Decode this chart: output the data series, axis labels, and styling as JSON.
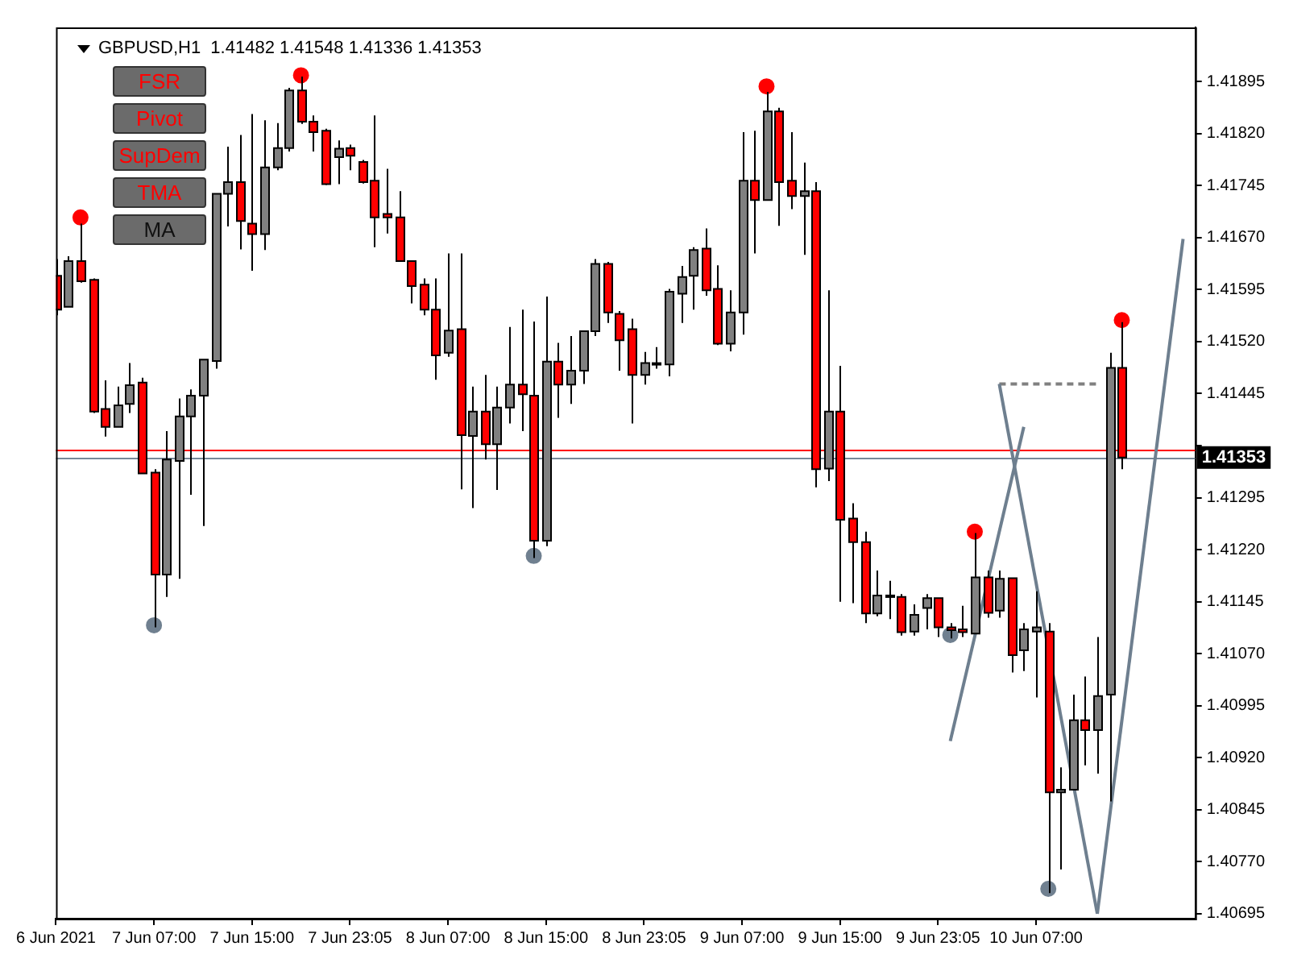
{
  "chart_data": {
    "type": "candlestick",
    "title": "GBPUSD,H1  1.41482 1.41548 1.41336 1.41353",
    "annotations": [
      "FSR",
      "Pivot",
      "SupDem",
      "TMA",
      "MA"
    ],
    "categories": [
      "6 Jun 2021",
      null,
      null,
      null,
      null,
      null,
      null,
      null,
      "7 Jun 07:00",
      null,
      null,
      null,
      null,
      null,
      null,
      null,
      "7 Jun 15:00",
      null,
      null,
      null,
      null,
      null,
      null,
      null,
      "7 Jun 23:05",
      null,
      null,
      null,
      null,
      null,
      null,
      null,
      "8 Jun 07:00",
      null,
      null,
      null,
      null,
      null,
      null,
      null,
      "8 Jun 15:00",
      null,
      null,
      null,
      null,
      null,
      null,
      null,
      "8 Jun 23:05",
      null,
      null,
      null,
      null,
      null,
      null,
      null,
      "9 Jun 07:00",
      null,
      null,
      null,
      null,
      null,
      null,
      null,
      "9 Jun 15:00",
      null,
      null,
      null,
      null,
      null,
      null,
      null,
      "9 Jun 23:05",
      null,
      null,
      null,
      null,
      null,
      null,
      null,
      "10 Jun 07:00",
      null,
      null,
      null,
      null,
      null,
      null,
      null,
      null,
      null,
      null,
      null,
      null,
      null
    ],
    "ohlc": [
      [
        1.41615,
        1.41639,
        1.41558,
        1.41566
      ],
      [
        1.4157,
        1.41643,
        1.4157,
        1.41636
      ],
      [
        1.41636,
        1.4169,
        1.41605,
        1.41607
      ],
      [
        1.41609,
        1.41611,
        1.41417,
        1.41419
      ],
      [
        1.41423,
        1.41464,
        1.41383,
        1.41397
      ],
      [
        1.41397,
        1.41455,
        1.41397,
        1.41428
      ],
      [
        1.4143,
        1.41489,
        1.41417,
        1.41457
      ],
      [
        1.41461,
        1.41468,
        1.4133,
        1.4133
      ],
      [
        1.41331,
        1.41336,
        1.41108,
        1.41184
      ],
      [
        1.41184,
        1.41391,
        1.41152,
        1.4135
      ],
      [
        1.41348,
        1.41438,
        1.41178,
        1.41412
      ],
      [
        1.41412,
        1.41451,
        1.41299,
        1.41442
      ],
      [
        1.41442,
        1.41494,
        1.41254,
        1.41494
      ],
      [
        1.41492,
        1.41733,
        1.41481,
        1.41733
      ],
      [
        1.41733,
        1.41801,
        1.41686,
        1.4175
      ],
      [
        1.4175,
        1.41818,
        1.41653,
        1.41694
      ],
      [
        1.4169,
        1.41848,
        1.41622,
        1.41675
      ],
      [
        1.41675,
        1.41839,
        1.41652,
        1.41771
      ],
      [
        1.41771,
        1.41835,
        1.41767,
        1.41799
      ],
      [
        1.41799,
        1.41886,
        1.41794,
        1.41882
      ],
      [
        1.41882,
        1.41902,
        1.41834,
        1.41837
      ],
      [
        1.41837,
        1.41846,
        1.41794,
        1.41822
      ],
      [
        1.41824,
        1.41827,
        1.41746,
        1.41747
      ],
      [
        1.41786,
        1.4181,
        1.41747,
        1.41798
      ],
      [
        1.41799,
        1.41804,
        1.41767,
        1.41788
      ],
      [
        1.41779,
        1.41782,
        1.41748,
        1.4175
      ],
      [
        1.41752,
        1.41846,
        1.41656,
        1.41699
      ],
      [
        1.41704,
        1.41769,
        1.41676,
        1.41699
      ],
      [
        1.41699,
        1.41737,
        1.41636,
        1.41636
      ],
      [
        1.41636,
        1.41636,
        1.41575,
        1.416
      ],
      [
        1.41602,
        1.41611,
        1.41558,
        1.41566
      ],
      [
        1.41566,
        1.41611,
        1.41465,
        1.415
      ],
      [
        1.41504,
        1.41647,
        1.41498,
        1.41536
      ],
      [
        1.41538,
        1.41647,
        1.41307,
        1.41385
      ],
      [
        1.41384,
        1.41455,
        1.4128,
        1.41419
      ],
      [
        1.41419,
        1.41472,
        1.4135,
        1.41372
      ],
      [
        1.41372,
        1.41455,
        1.41306,
        1.41425
      ],
      [
        1.41425,
        1.41541,
        1.41402,
        1.41458
      ],
      [
        1.41458,
        1.41566,
        1.41391,
        1.41444
      ],
      [
        1.41442,
        1.41549,
        1.41208,
        1.41233
      ],
      [
        1.41233,
        1.41585,
        1.41225,
        1.41491
      ],
      [
        1.41491,
        1.41518,
        1.4141,
        1.41458
      ],
      [
        1.41458,
        1.41528,
        1.4143,
        1.41478
      ],
      [
        1.41478,
        1.41536,
        1.41459,
        1.41535
      ],
      [
        1.41535,
        1.41639,
        1.41528,
        1.41632
      ],
      [
        1.41632,
        1.41635,
        1.41547,
        1.41562
      ],
      [
        1.4156,
        1.41564,
        1.41478,
        1.41522
      ],
      [
        1.41538,
        1.41553,
        1.41402,
        1.41472
      ],
      [
        1.41472,
        1.41505,
        1.41458,
        1.41489
      ],
      [
        1.41487,
        1.41512,
        1.41481,
        1.41489
      ],
      [
        1.41487,
        1.41596,
        1.4147,
        1.41592
      ],
      [
        1.41589,
        1.41629,
        1.41547,
        1.41613
      ],
      [
        1.41615,
        1.41656,
        1.41566,
        1.41652
      ],
      [
        1.41654,
        1.41683,
        1.41586,
        1.41594
      ],
      [
        1.41596,
        1.4163,
        1.41515,
        1.41517
      ],
      [
        1.41517,
        1.41594,
        1.41506,
        1.41562
      ],
      [
        1.41562,
        1.41822,
        1.4153,
        1.41752
      ],
      [
        1.41752,
        1.41824,
        1.41647,
        1.41724
      ],
      [
        1.41724,
        1.4188,
        1.41724,
        1.41852
      ],
      [
        1.41852,
        1.41857,
        1.41687,
        1.4175
      ],
      [
        1.41752,
        1.41822,
        1.41711,
        1.4173
      ],
      [
        1.4173,
        1.41778,
        1.41645,
        1.41737
      ],
      [
        1.41737,
        1.4175,
        1.4131,
        1.41336
      ],
      [
        1.41337,
        1.41594,
        1.41319,
        1.41419
      ],
      [
        1.41419,
        1.41485,
        1.41145,
        1.41263
      ],
      [
        1.41265,
        1.41287,
        1.41143,
        1.41231
      ],
      [
        1.41231,
        1.41246,
        1.41114,
        1.41128
      ],
      [
        1.41128,
        1.4119,
        1.41124,
        1.41154
      ],
      [
        1.41152,
        1.41175,
        1.4112,
        1.41154
      ],
      [
        1.41152,
        1.41156,
        1.41096,
        1.41101
      ],
      [
        1.41102,
        1.41141,
        1.41096,
        1.41126
      ],
      [
        1.41136,
        1.41156,
        1.41105,
        1.4115
      ],
      [
        1.4115,
        1.4115,
        1.41094,
        1.41108
      ],
      [
        1.41108,
        1.41114,
        1.41092,
        1.41104
      ],
      [
        1.41105,
        1.41139,
        1.41094,
        1.41101
      ],
      [
        1.41099,
        1.41244,
        1.41099,
        1.4118
      ],
      [
        1.4118,
        1.4119,
        1.41122,
        1.41129
      ],
      [
        1.41132,
        1.4119,
        1.41122,
        1.41178
      ],
      [
        1.41179,
        1.41179,
        1.41043,
        1.41068
      ],
      [
        1.41075,
        1.41114,
        1.41045,
        1.41105
      ],
      [
        1.41102,
        1.4116,
        1.41007,
        1.41108
      ],
      [
        1.41102,
        1.41114,
        1.40725,
        1.4087
      ],
      [
        1.4087,
        1.40906,
        1.40759,
        1.40874
      ],
      [
        1.40874,
        1.41011,
        1.40874,
        1.40974
      ],
      [
        1.40974,
        1.41037,
        1.40909,
        1.4096
      ],
      [
        1.4096,
        1.41094,
        1.40897,
        1.41009
      ],
      [
        1.41011,
        1.41504,
        1.40857,
        1.41482
      ],
      [
        1.41482,
        1.41548,
        1.41336,
        1.41353
      ],
      null,
      null,
      null,
      null,
      null,
      null
    ],
    "colors": [
      "#ff0000",
      "#808080",
      "#ff0000",
      "#ff0000",
      "#ff0000",
      "#808080",
      "#808080",
      "#ff0000",
      "#ff0000",
      "#808080",
      "#808080",
      "#808080",
      "#808080",
      "#808080",
      "#808080",
      "#ff0000",
      "#ff0000",
      "#808080",
      "#808080",
      "#808080",
      "#ff0000",
      "#ff0000",
      "#ff0000",
      "#808080",
      "#ff0000",
      "#ff0000",
      "#ff0000",
      "#ff0000",
      "#ff0000",
      "#ff0000",
      "#ff0000",
      "#ff0000",
      "#808080",
      "#ff0000",
      "#808080",
      "#ff0000",
      "#808080",
      "#808080",
      "#ff0000",
      "#ff0000",
      "#808080",
      "#ff0000",
      "#808080",
      "#808080",
      "#808080",
      "#ff0000",
      "#ff0000",
      "#ff0000",
      "#808080",
      "#808080",
      "#808080",
      "#808080",
      "#808080",
      "#ff0000",
      "#ff0000",
      "#808080",
      "#808080",
      "#ff0000",
      "#808080",
      "#ff0000",
      "#ff0000",
      "#808080",
      "#ff0000",
      "#808080",
      "#ff0000",
      "#ff0000",
      "#ff0000",
      "#808080",
      "#808080",
      "#ff0000",
      "#808080",
      "#808080",
      "#ff0000",
      "#ff0000",
      "#ff0000",
      "#808080",
      "#ff0000",
      "#808080",
      "#ff0000",
      "#808080",
      "#808080",
      "#ff0000",
      "#808080",
      "#808080",
      "#ff0000",
      "#808080",
      "#808080",
      "#ff0000",
      null,
      null,
      null,
      null,
      null,
      null
    ],
    "series": [
      {
        "type": "scatter",
        "marker": "circle",
        "color": "#ff0000",
        "values": [
          null,
          null,
          1.41699,
          null,
          null,
          null,
          null,
          null,
          null,
          null,
          null,
          null,
          null,
          null,
          null,
          null,
          null,
          null,
          null,
          null,
          1.41904,
          null,
          null,
          null,
          null,
          null,
          null,
          null,
          null,
          null,
          null,
          null,
          null,
          null,
          null,
          null,
          null,
          null,
          null,
          null,
          null,
          null,
          null,
          null,
          null,
          null,
          null,
          null,
          null,
          null,
          null,
          null,
          null,
          null,
          null,
          null,
          null,
          null,
          1.41888,
          null,
          null,
          null,
          null,
          null,
          null,
          null,
          null,
          null,
          null,
          null,
          null,
          null,
          null,
          null,
          null,
          1.41246,
          null,
          null,
          null,
          null,
          null,
          null,
          null,
          null,
          null,
          null,
          null,
          1.41551,
          null,
          null,
          null,
          null,
          null,
          null
        ]
      },
      {
        "type": "scatter",
        "marker": "circle",
        "color": "#708090",
        "values": [
          null,
          null,
          null,
          null,
          null,
          null,
          null,
          null,
          1.41111,
          null,
          null,
          null,
          null,
          null,
          null,
          null,
          null,
          null,
          null,
          null,
          null,
          null,
          null,
          null,
          null,
          null,
          null,
          null,
          null,
          null,
          null,
          null,
          null,
          null,
          null,
          null,
          null,
          null,
          null,
          1.41211,
          null,
          null,
          null,
          null,
          null,
          null,
          null,
          null,
          null,
          null,
          null,
          null,
          null,
          null,
          null,
          null,
          null,
          null,
          null,
          null,
          null,
          null,
          null,
          null,
          null,
          null,
          null,
          null,
          null,
          null,
          null,
          null,
          null,
          1.41097,
          null,
          null,
          null,
          null,
          null,
          null,
          null,
          1.40731,
          null,
          null,
          null,
          null,
          null,
          null,
          null,
          null,
          null,
          null,
          null,
          null
        ]
      },
      {
        "type": "line",
        "line_style": "solid",
        "color": "#6e7f8f",
        "values": [
          null,
          null,
          null,
          null,
          null,
          null,
          null,
          null,
          null,
          null,
          null,
          null,
          null,
          null,
          null,
          null,
          null,
          null,
          null,
          null,
          null,
          null,
          null,
          null,
          null,
          null,
          null,
          null,
          null,
          null,
          null,
          null,
          null,
          null,
          null,
          null,
          null,
          null,
          null,
          null,
          null,
          null,
          null,
          null,
          null,
          null,
          null,
          null,
          null,
          null,
          null,
          null,
          null,
          null,
          null,
          null,
          null,
          null,
          null,
          null,
          null,
          null,
          null,
          null,
          null,
          null,
          null,
          null,
          null,
          null,
          null,
          null,
          null,
          1.40944,
          null,
          null,
          null,
          null,
          null,
          1.41397,
          null,
          null,
          null,
          null,
          null,
          null,
          null,
          null,
          null,
          null,
          null,
          null,
          null,
          null
        ]
      },
      {
        "type": "line",
        "line_style": "solid",
        "color": "#6e7f8f",
        "values": [
          null,
          null,
          null,
          null,
          null,
          null,
          null,
          null,
          null,
          null,
          null,
          null,
          null,
          null,
          null,
          null,
          null,
          null,
          null,
          null,
          null,
          null,
          null,
          null,
          null,
          null,
          null,
          null,
          null,
          null,
          null,
          null,
          null,
          null,
          null,
          null,
          null,
          null,
          null,
          null,
          null,
          null,
          null,
          null,
          null,
          null,
          null,
          null,
          null,
          null,
          null,
          null,
          null,
          null,
          null,
          null,
          null,
          null,
          null,
          null,
          null,
          null,
          null,
          null,
          null,
          null,
          null,
          null,
          null,
          null,
          null,
          null,
          null,
          null,
          null,
          null,
          null,
          1.41459,
          null,
          null,
          null,
          null,
          null,
          null,
          null,
          1.40695,
          null,
          null,
          null,
          null,
          null,
          null,
          null,
          null
        ]
      },
      {
        "type": "line",
        "line_style": "solid",
        "color": "#6e7f8f",
        "values": [
          null,
          null,
          null,
          null,
          null,
          null,
          null,
          null,
          null,
          null,
          null,
          null,
          null,
          null,
          null,
          null,
          null,
          null,
          null,
          null,
          null,
          null,
          null,
          null,
          null,
          null,
          null,
          null,
          null,
          null,
          null,
          null,
          null,
          null,
          null,
          null,
          null,
          null,
          null,
          null,
          null,
          null,
          null,
          null,
          null,
          null,
          null,
          null,
          null,
          null,
          null,
          null,
          null,
          null,
          null,
          null,
          null,
          null,
          null,
          null,
          null,
          null,
          null,
          null,
          null,
          null,
          null,
          null,
          null,
          null,
          null,
          null,
          null,
          null,
          null,
          null,
          null,
          null,
          null,
          null,
          null,
          null,
          null,
          null,
          null,
          1.40695,
          null,
          null,
          null,
          null,
          null,
          null,
          1.41668,
          null
        ]
      },
      {
        "type": "line",
        "line_style": "dashed",
        "color": "#808080",
        "values": [
          null,
          null,
          null,
          null,
          null,
          null,
          null,
          null,
          null,
          null,
          null,
          null,
          null,
          null,
          null,
          null,
          null,
          null,
          null,
          null,
          null,
          null,
          null,
          null,
          null,
          null,
          null,
          null,
          null,
          null,
          null,
          null,
          null,
          null,
          null,
          null,
          null,
          null,
          null,
          null,
          null,
          null,
          null,
          null,
          null,
          null,
          null,
          null,
          null,
          null,
          null,
          null,
          null,
          null,
          null,
          null,
          null,
          null,
          null,
          null,
          null,
          null,
          null,
          null,
          null,
          null,
          null,
          null,
          null,
          null,
          null,
          null,
          null,
          null,
          null,
          null,
          null,
          1.41459,
          null,
          null,
          null,
          null,
          null,
          null,
          null,
          1.41459,
          null,
          null,
          null,
          null,
          null,
          null,
          null,
          null
        ]
      }
    ],
    "ref_lines": [
      {
        "axis": "y",
        "value": 1.41364,
        "color": "#ff0000"
      },
      {
        "axis": "y",
        "value": 1.41353,
        "label": "1.41353",
        "color": "#778899"
      }
    ],
    "ylim": [
      1.40688,
      1.41973
    ],
    "yticks": [
      1.41895,
      {
        "value": 1.4182,
        "label": "1.41820"
      },
      1.41745,
      {
        "value": 1.4167,
        "label": "1.41670"
      },
      1.41595,
      {
        "value": 1.4152,
        "label": "1.41520"
      },
      1.41445,
      {
        "value": 1.4137,
        "label": null
      },
      1.41295,
      {
        "value": 1.4122,
        "label": "1.41220"
      },
      1.41145,
      {
        "value": 1.4107,
        "label": "1.41070"
      },
      1.40995,
      {
        "value": 1.4092,
        "label": "1.40920"
      },
      1.40845,
      {
        "value": 1.4077,
        "label": "1.40770"
      },
      1.40695
    ],
    "grid": false
  }
}
